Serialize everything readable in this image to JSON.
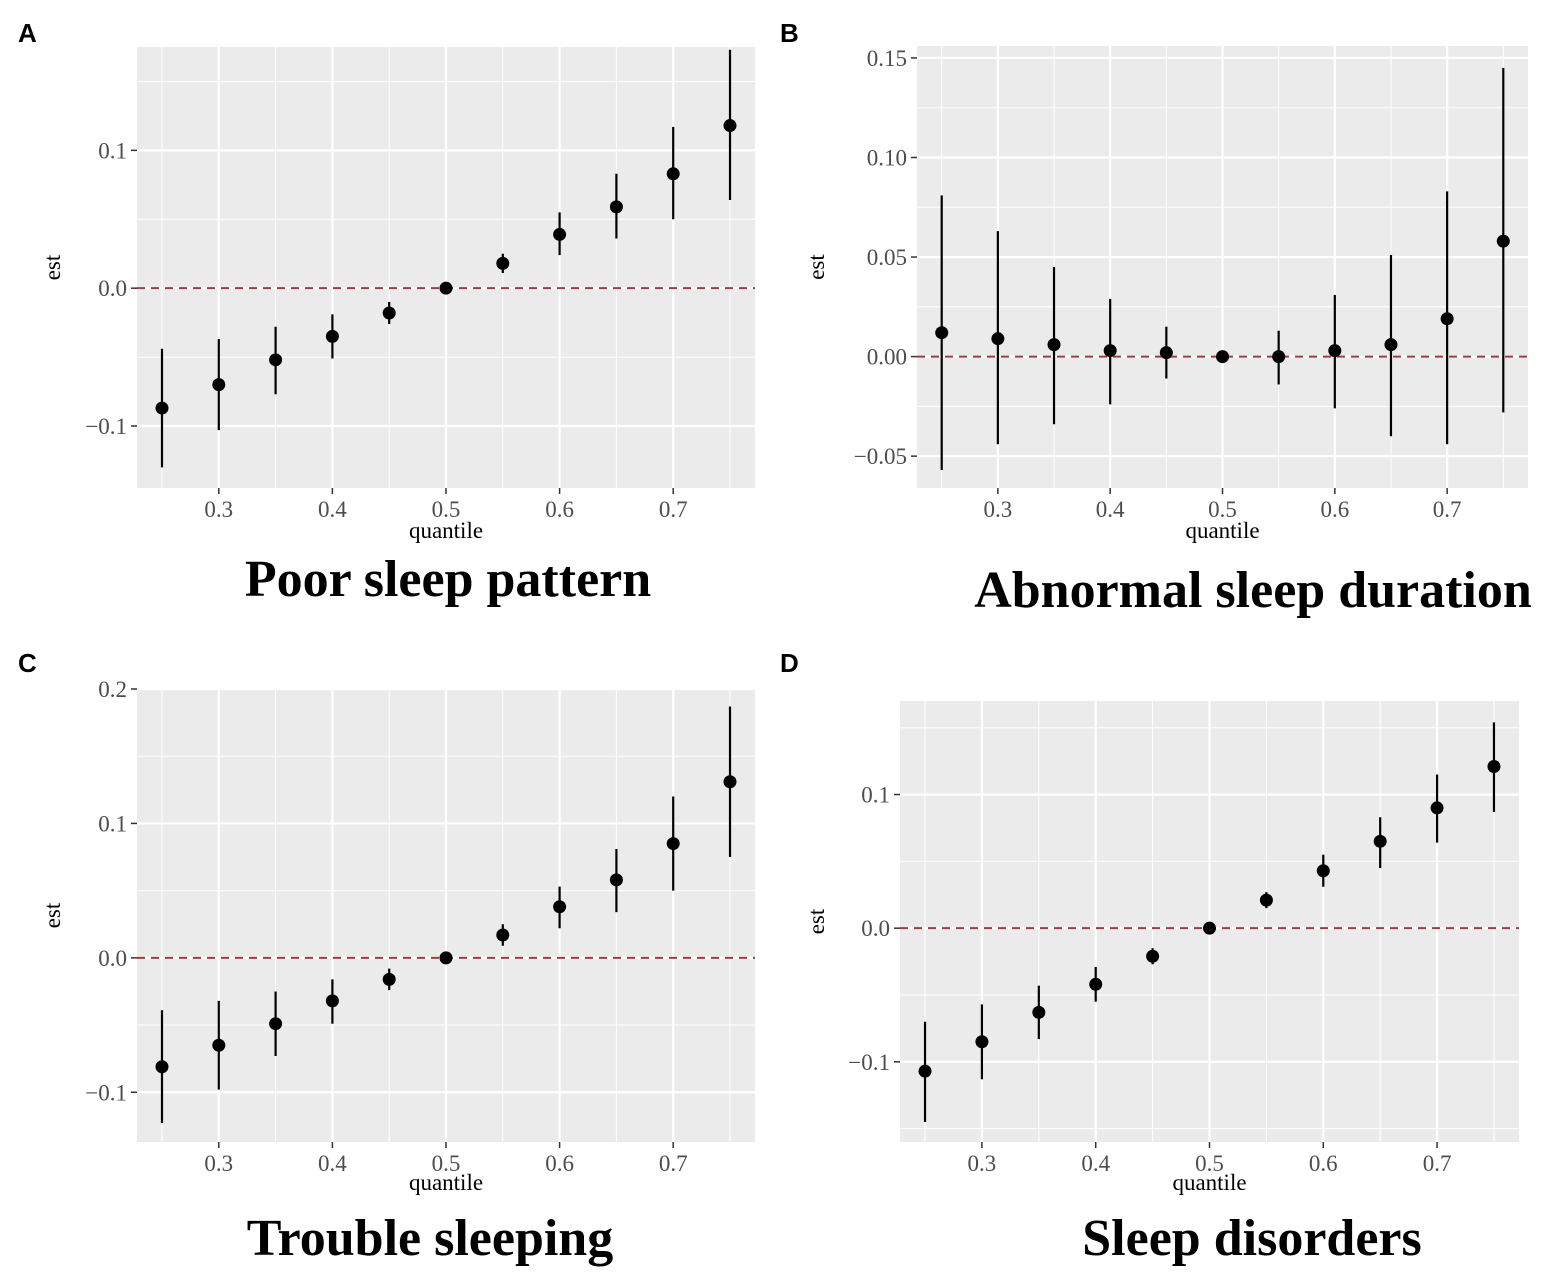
{
  "chart_data": [
    {
      "panel": "A",
      "type": "scatter",
      "title": "Poor sleep pattern",
      "xlabel": "quantile",
      "ylabel": "est",
      "xlim": [
        0.228,
        0.772
      ],
      "ylim": [
        -0.145,
        0.175
      ],
      "xticks": [
        0.3,
        0.4,
        0.5,
        0.6,
        0.7
      ],
      "xtick_labels": [
        "0.3",
        "0.4",
        "0.5",
        "0.6",
        "0.7"
      ],
      "yticks": [
        -0.1,
        0.0,
        0.1
      ],
      "ytick_labels": [
        "−0.1",
        "0.0",
        "0.1"
      ],
      "reference_line": 0,
      "x": [
        0.25,
        0.3,
        0.35,
        0.4,
        0.45,
        0.5,
        0.55,
        0.6,
        0.65,
        0.7,
        0.75
      ],
      "est": [
        -0.087,
        -0.07,
        -0.052,
        -0.035,
        -0.018,
        0.0,
        0.018,
        0.039,
        0.059,
        0.083,
        0.118
      ],
      "lower": [
        -0.13,
        -0.103,
        -0.077,
        -0.051,
        -0.026,
        0.0,
        0.011,
        0.024,
        0.036,
        0.05,
        0.064
      ],
      "upper": [
        -0.044,
        -0.037,
        -0.028,
        -0.019,
        -0.01,
        0.0,
        0.025,
        0.055,
        0.083,
        0.117,
        0.173
      ]
    },
    {
      "panel": "B",
      "type": "scatter",
      "title": "Abnormal sleep duration",
      "xlabel": "quantile",
      "ylabel": "est",
      "xlim": [
        0.228,
        0.772
      ],
      "ylim": [
        -0.066,
        0.156
      ],
      "xticks": [
        0.3,
        0.4,
        0.5,
        0.6,
        0.7
      ],
      "xtick_labels": [
        "0.3",
        "0.4",
        "0.5",
        "0.6",
        "0.7"
      ],
      "yticks": [
        -0.05,
        0.0,
        0.05,
        0.1,
        0.15
      ],
      "ytick_labels": [
        "−0.05",
        "0.00",
        "0.05",
        "0.10",
        "0.15"
      ],
      "reference_line": 0,
      "x": [
        0.25,
        0.3,
        0.35,
        0.4,
        0.45,
        0.5,
        0.55,
        0.6,
        0.65,
        0.7,
        0.75
      ],
      "est": [
        0.012,
        0.009,
        0.006,
        0.003,
        0.002,
        0.0,
        0.0,
        0.003,
        0.006,
        0.019,
        0.058
      ],
      "lower": [
        -0.057,
        -0.044,
        -0.034,
        -0.024,
        -0.011,
        0.0,
        -0.014,
        -0.026,
        -0.04,
        -0.044,
        -0.028
      ],
      "upper": [
        0.081,
        0.063,
        0.045,
        0.029,
        0.015,
        0.0,
        0.013,
        0.031,
        0.051,
        0.083,
        0.145
      ]
    },
    {
      "panel": "C",
      "type": "scatter",
      "title": "Trouble sleeping",
      "xlabel": "quantile",
      "ylabel": "est",
      "xlim": [
        0.228,
        0.772
      ],
      "ylim": [
        -0.137,
        0.2
      ],
      "xticks": [
        0.3,
        0.4,
        0.5,
        0.6,
        0.7
      ],
      "xtick_labels": [
        "0.3",
        "0.4",
        "0.5",
        "0.6",
        "0.7"
      ],
      "yticks": [
        -0.1,
        0.0,
        0.1,
        0.2
      ],
      "ytick_labels": [
        "−0.1",
        "0.0",
        "0.1",
        "0.2"
      ],
      "reference_line": 0,
      "x": [
        0.25,
        0.3,
        0.35,
        0.4,
        0.45,
        0.5,
        0.55,
        0.6,
        0.65,
        0.7,
        0.75
      ],
      "est": [
        -0.081,
        -0.065,
        -0.049,
        -0.032,
        -0.016,
        0.0,
        0.017,
        0.038,
        0.058,
        0.085,
        0.131
      ],
      "lower": [
        -0.123,
        -0.098,
        -0.073,
        -0.049,
        -0.024,
        0.0,
        0.009,
        0.022,
        0.034,
        0.05,
        0.075
      ],
      "upper": [
        -0.039,
        -0.032,
        -0.025,
        -0.016,
        -0.008,
        0.0,
        0.025,
        0.053,
        0.081,
        0.12,
        0.187
      ]
    },
    {
      "panel": "D",
      "type": "scatter",
      "title": "Sleep disorders",
      "xlabel": "quantile",
      "ylabel": "est",
      "xlim": [
        0.228,
        0.772
      ],
      "ylim": [
        -0.16,
        0.17
      ],
      "xticks": [
        0.3,
        0.4,
        0.5,
        0.6,
        0.7
      ],
      "xtick_labels": [
        "0.3",
        "0.4",
        "0.5",
        "0.6",
        "0.7"
      ],
      "yticks": [
        -0.1,
        0.0,
        0.1
      ],
      "ytick_labels": [
        "−0.1",
        "0.0",
        "0.1"
      ],
      "reference_line": 0,
      "x": [
        0.25,
        0.3,
        0.35,
        0.4,
        0.45,
        0.5,
        0.55,
        0.6,
        0.65,
        0.7,
        0.75
      ],
      "est": [
        -0.107,
        -0.085,
        -0.063,
        -0.042,
        -0.021,
        0.0,
        0.021,
        0.043,
        0.065,
        0.09,
        0.121
      ],
      "lower": [
        -0.145,
        -0.113,
        -0.083,
        -0.055,
        -0.027,
        0.0,
        0.015,
        0.031,
        0.045,
        0.064,
        0.087
      ],
      "upper": [
        -0.07,
        -0.057,
        -0.043,
        -0.029,
        -0.015,
        0.0,
        0.027,
        0.055,
        0.083,
        0.115,
        0.154
      ]
    }
  ],
  "colors": {
    "panel_background": "#ebebeb",
    "grid": "#ffffff",
    "point": "#000000",
    "reference_line": "#a03c3c",
    "tick_text": "#4d4d4d"
  }
}
